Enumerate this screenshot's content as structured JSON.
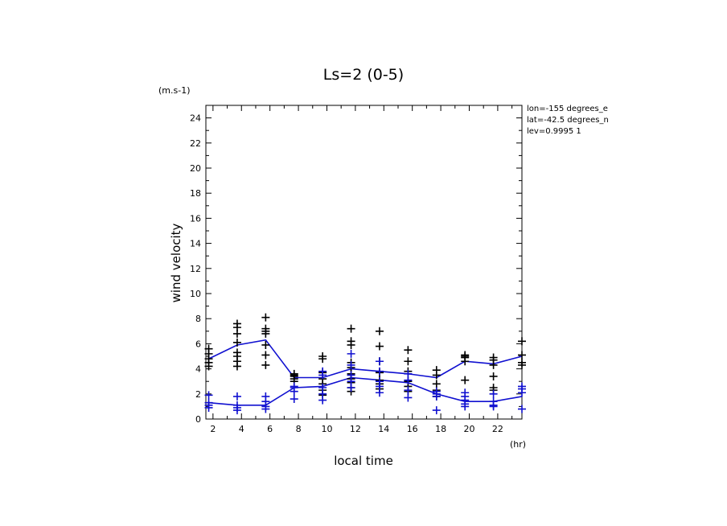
{
  "chart_data": {
    "type": "scatter",
    "title": "Ls=2 (0-5)",
    "xlabel": "local time",
    "ylabel": "wind velocity",
    "yunit": "(m.s-1)",
    "xunit": "(hr)",
    "info": [
      "lon=-155 degrees_e",
      "lat=-42.5 degrees_n",
      "lev=0.9995 1"
    ],
    "xlim": [
      1.5,
      23.7
    ],
    "ylim": [
      0,
      25
    ],
    "xticks": [
      2,
      4,
      6,
      8,
      10,
      12,
      14,
      16,
      18,
      20,
      22
    ],
    "yticks": [
      0,
      2,
      4,
      6,
      8,
      10,
      12,
      14,
      16,
      18,
      20,
      22,
      24
    ],
    "grid": false,
    "series": [
      {
        "color": "#000000",
        "x": [
          1.7,
          1.7,
          1.7,
          1.7,
          1.7,
          3.7,
          3.7,
          3.7,
          3.7,
          3.7,
          3.7,
          3.7,
          3.7,
          5.7,
          5.7,
          5.7,
          5.7,
          5.7,
          5.7,
          5.7,
          7.7,
          7.7,
          7.7,
          7.7,
          7.7,
          9.7,
          9.7,
          9.7,
          9.7,
          9.7,
          9.7,
          9.7,
          11.7,
          11.7,
          11.7,
          11.7,
          11.7,
          11.7,
          11.7,
          11.7,
          11.7,
          11.7,
          13.7,
          13.7,
          13.7,
          13.7,
          13.7,
          13.7,
          13.7,
          15.7,
          15.7,
          15.7,
          15.7,
          15.7,
          15.7,
          17.7,
          17.7,
          17.7,
          17.7,
          17.7,
          19.7,
          19.7,
          19.7,
          19.7,
          19.7,
          21.7,
          21.7,
          21.7,
          21.7,
          21.7,
          21.7,
          23.7,
          23.7,
          23.7,
          23.7
        ],
        "y": [
          4.2,
          4.5,
          4.8,
          5.2,
          5.6,
          4.2,
          4.6,
          5.0,
          5.3,
          6.1,
          6.8,
          7.3,
          7.6,
          4.3,
          5.1,
          5.9,
          6.8,
          7.0,
          7.2,
          8.1,
          3.0,
          3.2,
          3.4,
          3.5,
          3.6,
          1.9,
          2.3,
          2.8,
          3.2,
          3.7,
          4.8,
          5.0,
          2.2,
          2.5,
          2.9,
          3.2,
          3.6,
          4.1,
          4.5,
          5.9,
          6.2,
          7.2,
          2.4,
          2.8,
          3.1,
          3.7,
          4.6,
          5.8,
          7.0,
          2.2,
          2.6,
          3.0,
          3.8,
          4.6,
          5.5,
          1.8,
          2.3,
          2.8,
          3.5,
          3.9,
          3.1,
          4.6,
          4.9,
          5.0,
          5.1,
          2.3,
          2.5,
          3.4,
          4.3,
          4.7,
          4.9,
          4.3,
          4.5,
          5.1,
          6.2
        ]
      },
      {
        "color": "#1010d0",
        "x": [
          1.7,
          1.7,
          1.7,
          1.7,
          3.7,
          3.7,
          3.7,
          3.7,
          5.7,
          5.7,
          5.7,
          5.7,
          7.7,
          7.7,
          7.7,
          7.7,
          9.7,
          9.7,
          9.7,
          9.7,
          9.7,
          11.7,
          11.7,
          11.7,
          11.7,
          11.7,
          13.7,
          13.7,
          13.7,
          13.7,
          13.7,
          15.7,
          15.7,
          15.7,
          15.7,
          17.7,
          17.7,
          17.7,
          17.7,
          19.7,
          19.7,
          19.7,
          19.7,
          19.7,
          21.7,
          21.7,
          21.7,
          21.7,
          23.7,
          23.7,
          23.7,
          23.7
        ],
        "y": [
          0.9,
          1.1,
          1.3,
          1.9,
          0.7,
          0.9,
          1.1,
          1.8,
          0.8,
          1.0,
          1.4,
          1.8,
          1.6,
          2.2,
          2.5,
          2.6,
          1.5,
          2.0,
          2.5,
          3.5,
          3.8,
          2.5,
          3.0,
          3.5,
          4.3,
          5.2,
          2.1,
          2.6,
          3.0,
          3.8,
          4.6,
          1.7,
          2.3,
          3.1,
          3.6,
          0.7,
          1.8,
          2.0,
          2.2,
          1.0,
          1.2,
          1.5,
          1.8,
          2.1,
          1.0,
          1.1,
          1.4,
          2.0,
          0.8,
          2.1,
          2.4,
          2.6
        ]
      }
    ],
    "lines": [
      {
        "color": "#1010d0",
        "x": [
          1.7,
          3.7,
          5.7,
          7.7,
          9.7,
          11.7,
          13.7,
          15.7,
          17.7,
          19.7,
          21.7,
          23.7
        ],
        "y": [
          4.8,
          5.9,
          6.3,
          3.3,
          3.3,
          4.0,
          3.8,
          3.6,
          3.3,
          4.6,
          4.4,
          5.0
        ]
      },
      {
        "color": "#1010d0",
        "x": [
          1.7,
          3.7,
          5.7,
          7.7,
          9.7,
          11.7,
          13.7,
          15.7,
          17.7,
          19.7,
          21.7,
          23.7
        ],
        "y": [
          1.3,
          1.1,
          1.1,
          2.5,
          2.6,
          3.3,
          3.1,
          2.9,
          2.0,
          1.4,
          1.4,
          1.8
        ]
      }
    ]
  }
}
